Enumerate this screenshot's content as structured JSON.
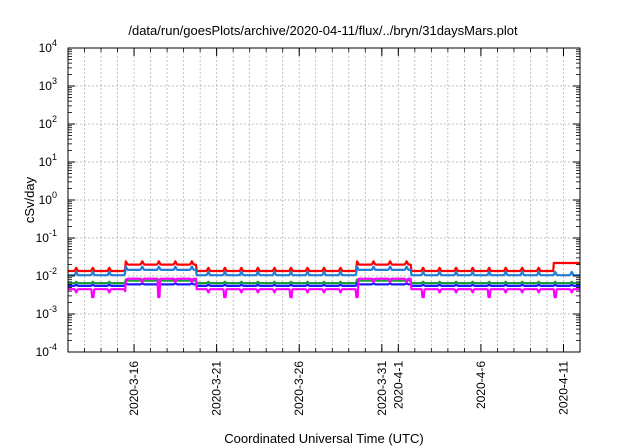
{
  "chart_data": {
    "type": "line",
    "title": "/data/run/goesPlots/archive/2020-04-11/flux/../bryn/31daysMars.plot",
    "xlabel": "Coordinated Universal Time (UTC)",
    "ylabel": "cSv/day",
    "y_scale": "log",
    "ylim": [
      0.0001,
      10000
    ],
    "y_ticks": [
      {
        "base": "10",
        "exp": "-4"
      },
      {
        "base": "10",
        "exp": "-3"
      },
      {
        "base": "10",
        "exp": "-2"
      },
      {
        "base": "10",
        "exp": "-1"
      },
      {
        "base": "10",
        "exp": "0"
      },
      {
        "base": "10",
        "exp": "1"
      },
      {
        "base": "10",
        "exp": "2"
      },
      {
        "base": "10",
        "exp": "3"
      },
      {
        "base": "10",
        "exp": "4"
      }
    ],
    "x_range": [
      "2020-03-12",
      "2020-04-12"
    ],
    "x_ticks": [
      "2020-3-16",
      "2020-3-21",
      "2020-3-26",
      "2020-3-31",
      "2020-4-1",
      "2020-4-6",
      "2020-4-11"
    ],
    "grid": true,
    "series": [
      {
        "color": "#ff0000",
        "baseline": 0.0135,
        "step_peak": 0.02,
        "pattern": "daily spikes to ~0.017; elevated steps 2020-3-16 to 3-19 and 3-30 to 4-1; end ~0.022"
      },
      {
        "color": "#1e7fd8",
        "baseline": 0.0105,
        "step_peak": 0.0145,
        "pattern": "daily spikes to ~0.012; elevated steps 2020-3-16 to 3-19 and 3-30 to 4-1"
      },
      {
        "color": "#1a9e3a",
        "baseline": 0.0065,
        "step_peak": 0.0075,
        "pattern": "flat with small daily variation"
      },
      {
        "color": "#1a1aff",
        "baseline": 0.0055,
        "step_peak": 0.006,
        "pattern": "flat with small daily variation"
      },
      {
        "color": "#ff00ff",
        "baseline": 0.0045,
        "step_peak": 0.0085,
        "pattern": "daily dips to ~0.004 with occasional deep dips to ~0.0028"
      }
    ]
  }
}
